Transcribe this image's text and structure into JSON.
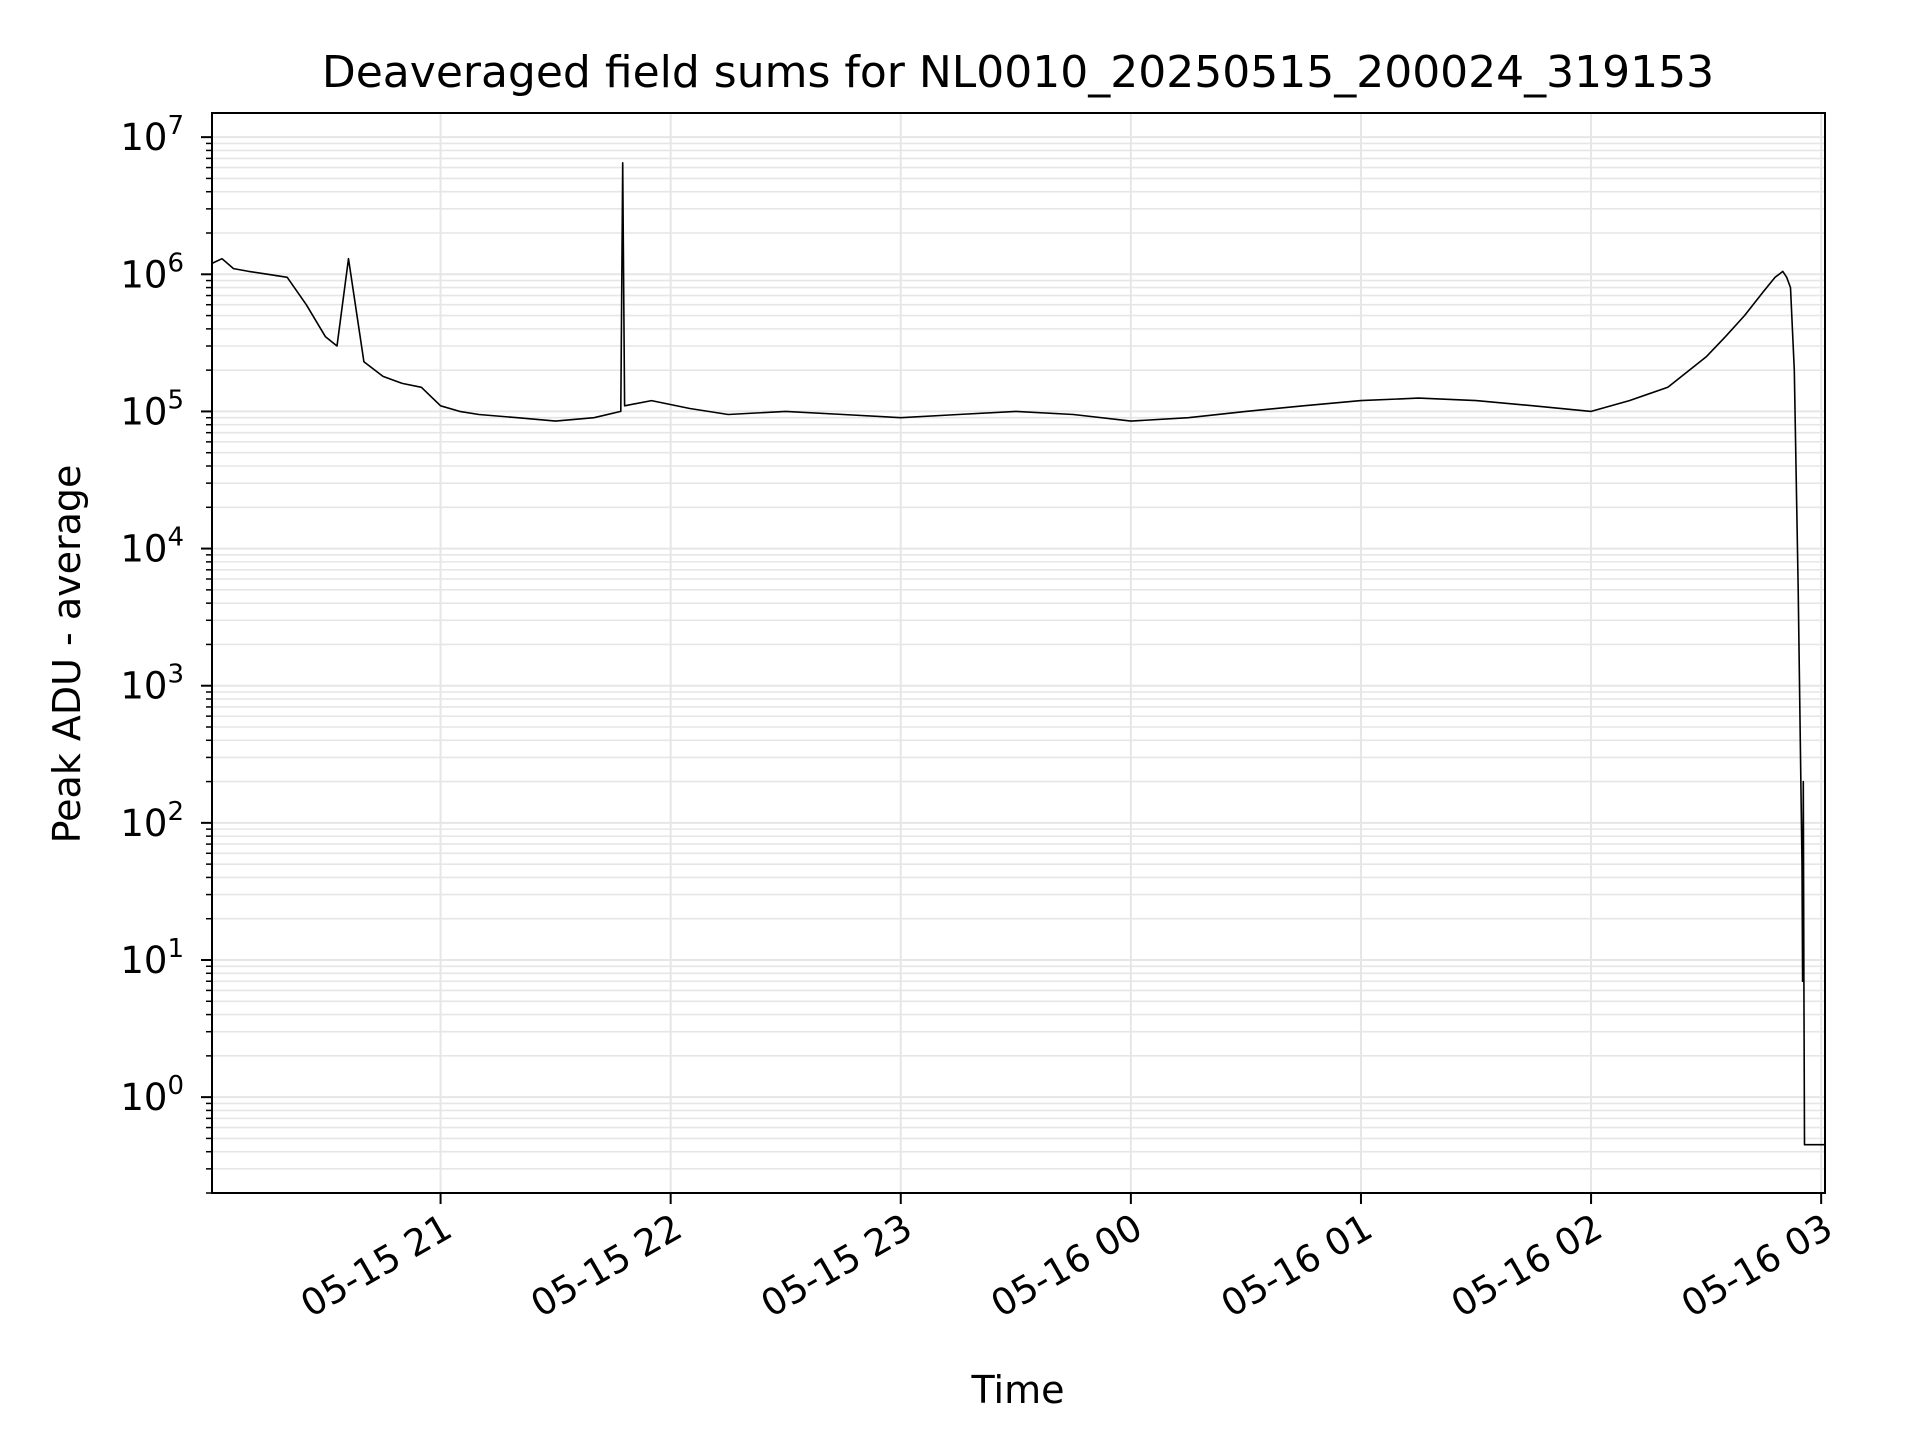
{
  "chart_data": {
    "type": "line",
    "title": "Deaveraged field sums for NL0010_20250515_200024_319153",
    "xlabel": "Time",
    "ylabel": "Peak ADU - average",
    "yscale": "log",
    "ylim": [
      0.2,
      15000000
    ],
    "xlim": [
      "2025-05-15 20:00:24",
      "2025-05-16 03:01:00"
    ],
    "grid": true,
    "x_ticks": [
      {
        "value": "2025-05-15 21:00",
        "label": "05-15 21"
      },
      {
        "value": "2025-05-15 22:00",
        "label": "05-15 22"
      },
      {
        "value": "2025-05-15 23:00",
        "label": "05-15 23"
      },
      {
        "value": "2025-05-16 00:00",
        "label": "05-16 00"
      },
      {
        "value": "2025-05-16 01:00",
        "label": "05-16 01"
      },
      {
        "value": "2025-05-16 02:00",
        "label": "05-16 02"
      },
      {
        "value": "2025-05-16 03:00",
        "label": "05-16 03"
      }
    ],
    "y_ticks": [
      {
        "value": 1,
        "base": "10",
        "exp": "0"
      },
      {
        "value": 10,
        "base": "10",
        "exp": "1"
      },
      {
        "value": 100,
        "base": "10",
        "exp": "2"
      },
      {
        "value": 1000,
        "base": "10",
        "exp": "3"
      },
      {
        "value": 10000,
        "base": "10",
        "exp": "4"
      },
      {
        "value": 100000,
        "base": "10",
        "exp": "5"
      },
      {
        "value": 1000000,
        "base": "10",
        "exp": "6"
      },
      {
        "value": 10000000,
        "base": "10",
        "exp": "7"
      }
    ],
    "series": [
      {
        "color": "#000000",
        "x": [
          "2025-05-15 20:00:24",
          "2025-05-15 20:03",
          "2025-05-15 20:06",
          "2025-05-15 20:10",
          "2025-05-15 20:15",
          "2025-05-15 20:20",
          "2025-05-15 20:25",
          "2025-05-15 20:30",
          "2025-05-15 20:33",
          "2025-05-15 20:36",
          "2025-05-15 20:40",
          "2025-05-15 20:45",
          "2025-05-15 20:50",
          "2025-05-15 20:55",
          "2025-05-15 21:00",
          "2025-05-15 21:05",
          "2025-05-15 21:10",
          "2025-05-15 21:20",
          "2025-05-15 21:30",
          "2025-05-15 21:40",
          "2025-05-15 21:47",
          "2025-05-15 21:47:30",
          "2025-05-15 21:48",
          "2025-05-15 21:55",
          "2025-05-15 22:05",
          "2025-05-15 22:15",
          "2025-05-15 22:30",
          "2025-05-15 22:45",
          "2025-05-15 23:00",
          "2025-05-15 23:15",
          "2025-05-15 23:30",
          "2025-05-15 23:45",
          "2025-05-16 00:00",
          "2025-05-16 00:15",
          "2025-05-16 00:30",
          "2025-05-16 00:45",
          "2025-05-16 01:00",
          "2025-05-16 01:15",
          "2025-05-16 01:30",
          "2025-05-16 01:45",
          "2025-05-16 02:00",
          "2025-05-16 02:10",
          "2025-05-16 02:20",
          "2025-05-16 02:30",
          "2025-05-16 02:35",
          "2025-05-16 02:40",
          "2025-05-16 02:45",
          "2025-05-16 02:48",
          "2025-05-16 02:50",
          "2025-05-16 02:51",
          "2025-05-16 02:52",
          "2025-05-16 02:53",
          "2025-05-16 02:54",
          "2025-05-16 02:55",
          "2025-05-16 02:55:10",
          "2025-05-16 02:55:20",
          "2025-05-16 02:55:30",
          "2025-05-16 02:55:40",
          "2025-05-16 02:56",
          "2025-05-16 03:01"
        ],
        "y": [
          1200000,
          1300000,
          1100000,
          1050000,
          1000000,
          950000,
          600000,
          350000,
          300000,
          1300000,
          230000,
          180000,
          160000,
          150000,
          110000,
          100000,
          95000,
          90000,
          85000,
          90000,
          100000,
          6500000,
          110000,
          120000,
          105000,
          95000,
          100000,
          95000,
          90000,
          95000,
          100000,
          95000,
          85000,
          90000,
          100000,
          110000,
          120000,
          125000,
          120000,
          110000,
          100000,
          120000,
          150000,
          250000,
          350000,
          500000,
          750000,
          950000,
          1050000,
          950000,
          800000,
          200000,
          5000,
          50,
          7,
          200,
          7,
          0.45,
          0.45,
          0.45
        ]
      }
    ]
  }
}
